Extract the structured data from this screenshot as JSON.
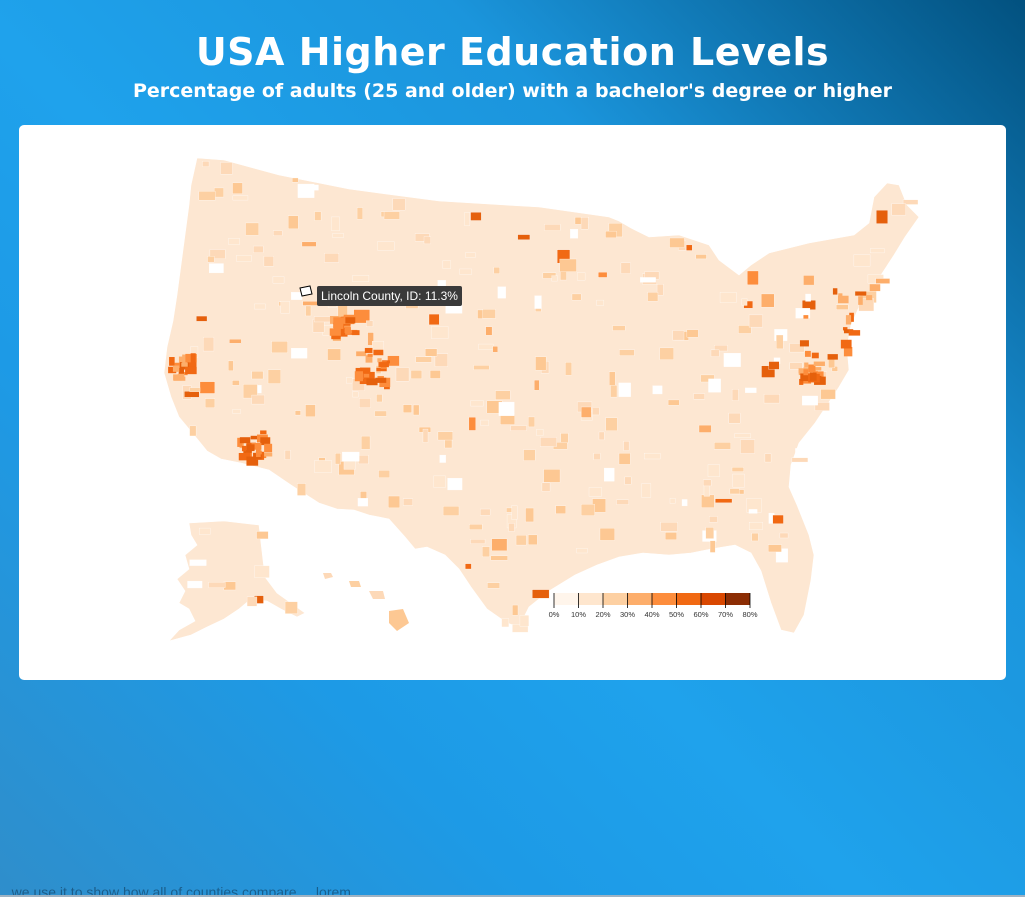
{
  "title": "USA Higher Education Levels",
  "subtitle": "Percentage of adults (25 and older) with a bachelor's degree or higher",
  "tooltip": "Lincoln County, ID: 11.3%",
  "legend": {
    "ticks": [
      "0%",
      "10%",
      "20%",
      "30%",
      "40%",
      "50%",
      "60%",
      "70%",
      "80%"
    ],
    "colors": [
      "#fff5eb",
      "#fee6ce",
      "#fdd0a2",
      "#fdae6b",
      "#fd8d3c",
      "#f16913",
      "#d94801",
      "#8c2d04"
    ]
  },
  "map": {
    "base_color": "#fde7d2",
    "hotspot_colors": [
      "#fdae6b",
      "#fd8d3c",
      "#f16913",
      "#e5600c"
    ]
  },
  "footer_text": "...we use it to show how all of counties compare ... lorem"
}
